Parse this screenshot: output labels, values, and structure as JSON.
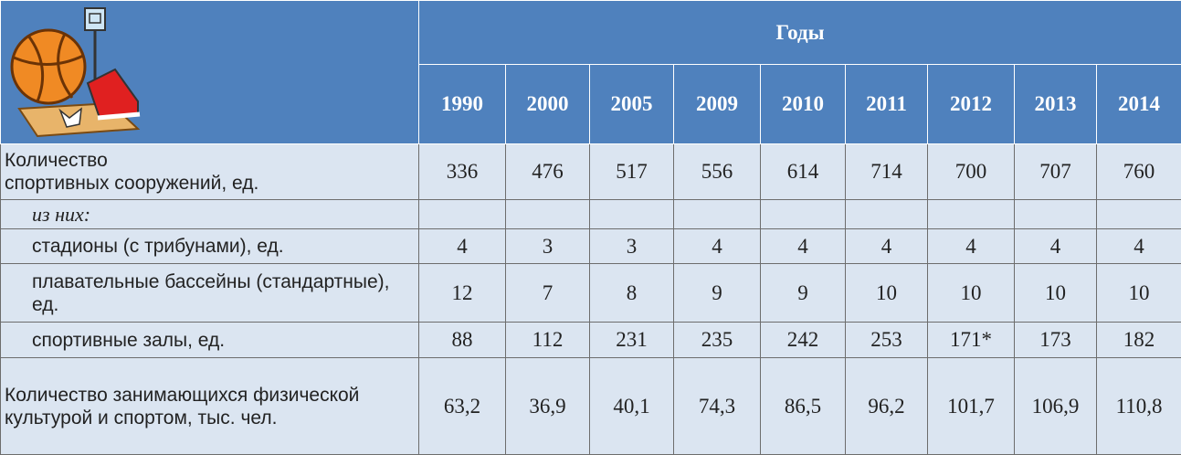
{
  "header": {
    "group_label": "Годы",
    "years": [
      "1990",
      "2000",
      "2005",
      "2009",
      "2010",
      "2011",
      "2012",
      "2013",
      "2014"
    ]
  },
  "rows": [
    {
      "label": "Количество\nспортивных сооружений, ед.",
      "indent": false,
      "italic": false,
      "values": [
        "336",
        "476",
        "517",
        "556",
        "614",
        "714",
        "700",
        "707",
        "760"
      ]
    },
    {
      "label": "из них:",
      "indent": true,
      "italic": true,
      "values": []
    },
    {
      "label": "стадионы (с трибунами), ед.",
      "indent": true,
      "italic": false,
      "values": [
        "4",
        "3",
        "3",
        "4",
        "4",
        "4",
        "4",
        "4",
        "4"
      ]
    },
    {
      "label": "плавательные бассейны (стандартные), ед.",
      "indent": true,
      "italic": false,
      "values": [
        "12",
        "7",
        "8",
        "9",
        "9",
        "10",
        "10",
        "10",
        "10"
      ]
    },
    {
      "label": "спортивные залы, ед.",
      "indent": true,
      "italic": false,
      "values": [
        "88",
        "112",
        "231",
        "235",
        "242",
        "253",
        "171*",
        "173",
        "182"
      ]
    },
    {
      "label": "Количество занимающихся физической культурой и спортом, тыс. чел.",
      "indent": false,
      "italic": false,
      "values": [
        "63,2",
        "36,9",
        "40,1",
        "74,3",
        "86,5",
        "96,2",
        "101,7",
        "106,9",
        "110,8"
      ]
    }
  ]
}
